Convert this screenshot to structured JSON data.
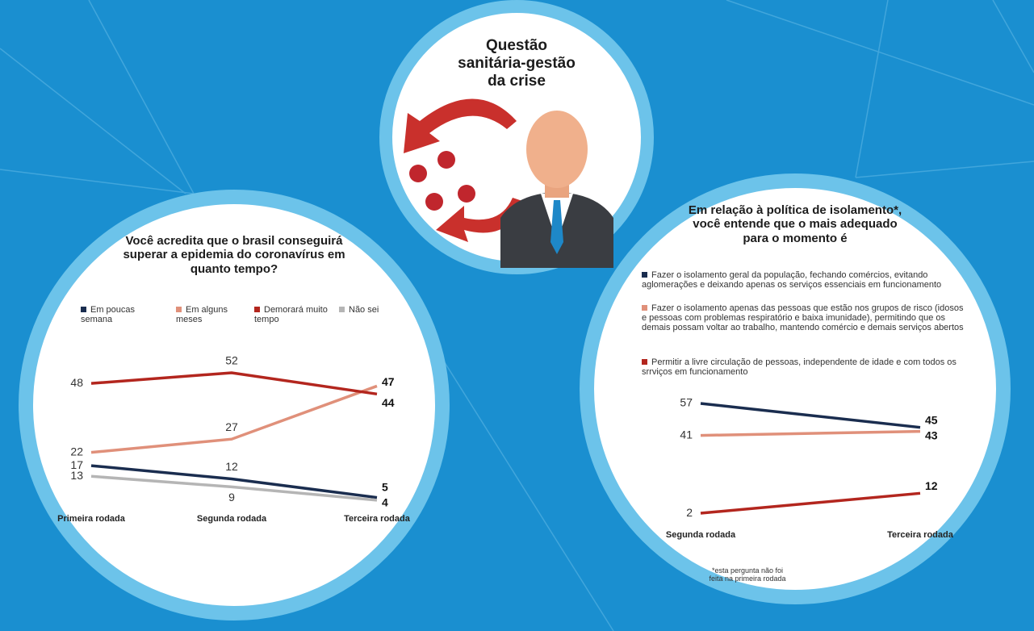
{
  "title": "Questão sanitária-gestão da crise",
  "chart_data": [
    {
      "type": "line",
      "title": "Você acredita que o brasil conseguirá superar a epidemia do coronavírus em quanto tempo?",
      "categories": [
        "Primeira rodada",
        "Segunda rodada",
        "Terceira rodada"
      ],
      "series": [
        {
          "name": "Em poucas semana",
          "color": "#1a2d4f",
          "values": [
            17,
            12,
            5
          ]
        },
        {
          "name": "Em alguns meses",
          "color": "#e0907a",
          "values": [
            22,
            27,
            47
          ]
        },
        {
          "name": "Demorará muito tempo",
          "color": "#b3261e",
          "values": [
            48,
            52,
            44
          ]
        },
        {
          "name": "Não sei",
          "color": "#b5b5b5",
          "values": [
            13,
            9,
            4
          ]
        }
      ]
    },
    {
      "type": "line",
      "title": "Em relação à política de isolamento*, você entende que o mais adequado para o momento é",
      "categories": [
        "Segunda rodada",
        "Terceira rodada"
      ],
      "series": [
        {
          "name": "Fazer o isolamento geral da população, fechando comércios, evitando aglomerações e deixando apenas os serviços essenciais em funcionamento",
          "color": "#1a2d4f",
          "values": [
            57,
            45
          ]
        },
        {
          "name": "Fazer o isolamento apenas das pessoas que estão nos grupos de risco (idosos e pessoas com problemas respiratório e baixa imunidade), permitindo que os demais possam voltar ao trabalho, mantendo comércio e demais serviços abertos",
          "color": "#e0907a",
          "values": [
            41,
            43
          ]
        },
        {
          "name": "Permitir a livre circulação de pessoas, independente de idade e com todos os srrviços em funcionamento",
          "color": "#b3261e",
          "values": [
            2,
            12
          ]
        }
      ],
      "note": "*esta pergunta não foi feita na primeira rodada"
    }
  ]
}
